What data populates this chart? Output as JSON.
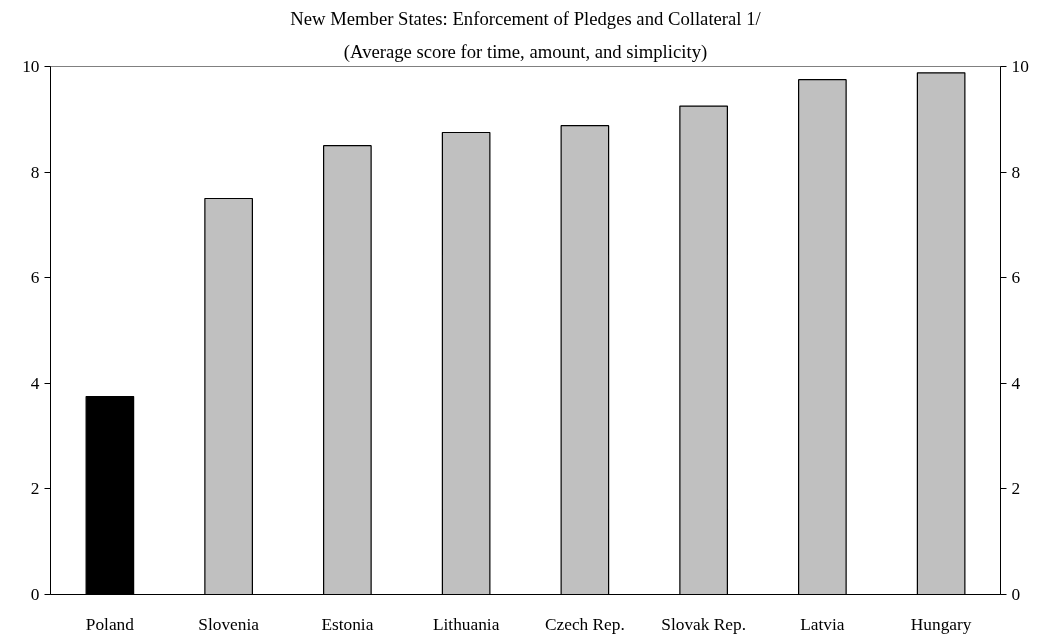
{
  "chart_data": {
    "type": "bar",
    "title": "New Member States: Enforcement of Pledges and Collateral 1/",
    "subtitle": "(Average score for time, amount, and simplicity)",
    "categories": [
      "Poland",
      "Slovenia",
      "Estonia",
      "Lithuania",
      "Czech Rep.",
      "Slovak Rep.",
      "Latvia",
      "Hungary"
    ],
    "values": [
      3.75,
      7.5,
      8.5,
      8.75,
      8.88,
      9.25,
      9.75,
      9.88
    ],
    "colors": [
      "#000000",
      "#c0c0c0",
      "#c0c0c0",
      "#c0c0c0",
      "#c0c0c0",
      "#c0c0c0",
      "#c0c0c0",
      "#c0c0c0"
    ],
    "ylim": [
      0,
      10
    ],
    "yticks": [
      0,
      2,
      4,
      6,
      8,
      10
    ],
    "y2lim": [
      0,
      10
    ],
    "y2ticks": [
      0,
      2,
      4,
      6,
      8,
      10
    ],
    "grid": false
  }
}
